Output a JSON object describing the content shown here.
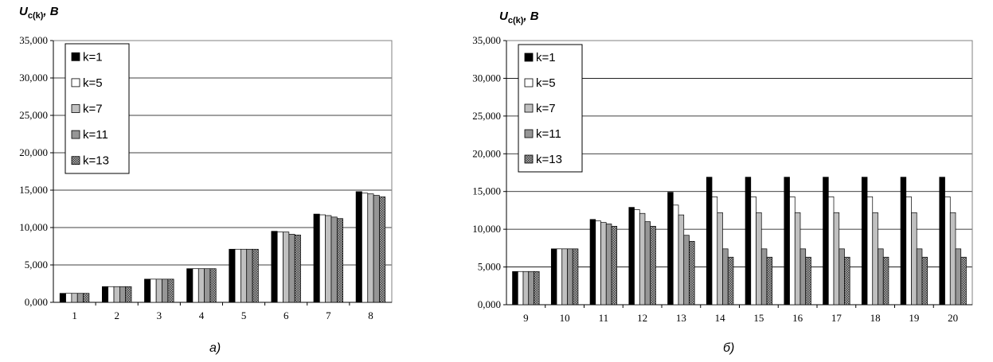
{
  "chart_data": [
    {
      "type": "bar",
      "ylabel_main": "U",
      "ylabel_sub": "c(k)",
      "ylabel_unit": ", B",
      "caption": "а)",
      "ylim": [
        0,
        35000
      ],
      "yticks": [
        "0,000",
        "5,000",
        "10,000",
        "15,000",
        "20,000",
        "25,000",
        "30,000",
        "35,000"
      ],
      "legend_position": "top-left",
      "categories": [
        "1",
        "2",
        "3",
        "4",
        "5",
        "6",
        "7",
        "8"
      ],
      "series": [
        {
          "name": "k=1",
          "color": "#000000",
          "pattern": "solid",
          "values": [
            1200,
            2100,
            3100,
            4500,
            7100,
            9500,
            11800,
            14800
          ]
        },
        {
          "name": "k=5",
          "color": "#ffffff",
          "pattern": "solid",
          "values": [
            1200,
            2100,
            3100,
            4500,
            7100,
            9400,
            11700,
            14600
          ]
        },
        {
          "name": "k=7",
          "color": "#c0c0c0",
          "pattern": "solid",
          "values": [
            1200,
            2100,
            3100,
            4500,
            7100,
            9400,
            11600,
            14500
          ]
        },
        {
          "name": "k=11",
          "color": "#969696",
          "pattern": "solid",
          "values": [
            1200,
            2100,
            3100,
            4500,
            7100,
            9100,
            11400,
            14300
          ]
        },
        {
          "name": "k=13",
          "color": "#808080",
          "pattern": "checker",
          "values": [
            1200,
            2100,
            3100,
            4500,
            7100,
            9000,
            11200,
            14100
          ]
        }
      ]
    },
    {
      "type": "bar",
      "ylabel_main": "U",
      "ylabel_sub": "c(k)",
      "ylabel_unit": ", B",
      "caption": "б)",
      "ylim": [
        0,
        35000
      ],
      "yticks": [
        "0,000",
        "5,000",
        "10,000",
        "15,000",
        "20,000",
        "25,000",
        "30,000",
        "35,000"
      ],
      "legend_position": "top-left",
      "categories": [
        "9",
        "10",
        "11",
        "12",
        "13",
        "14",
        "15",
        "16",
        "17",
        "18",
        "19",
        "20"
      ],
      "series": [
        {
          "name": "k=1",
          "color": "#000000",
          "pattern": "solid",
          "values": [
            4400,
            7400,
            11300,
            12900,
            14900,
            16900,
            16900,
            16900,
            16900,
            16900,
            16900,
            16900
          ]
        },
        {
          "name": "k=5",
          "color": "#ffffff",
          "pattern": "solid",
          "values": [
            4400,
            7400,
            11100,
            12600,
            13200,
            14300,
            14300,
            14300,
            14300,
            14300,
            14300,
            14300
          ]
        },
        {
          "name": "k=7",
          "color": "#c0c0c0",
          "pattern": "solid",
          "values": [
            4400,
            7400,
            10900,
            12100,
            11900,
            12200,
            12200,
            12200,
            12200,
            12200,
            12200,
            12200
          ]
        },
        {
          "name": "k=11",
          "color": "#969696",
          "pattern": "solid",
          "values": [
            4400,
            7400,
            10700,
            11000,
            9200,
            7400,
            7400,
            7400,
            7400,
            7400,
            7400,
            7400
          ]
        },
        {
          "name": "k=13",
          "color": "#808080",
          "pattern": "checker",
          "values": [
            4400,
            7400,
            10400,
            10400,
            8400,
            6300,
            6300,
            6300,
            6300,
            6300,
            6300,
            6300
          ]
        }
      ]
    }
  ]
}
